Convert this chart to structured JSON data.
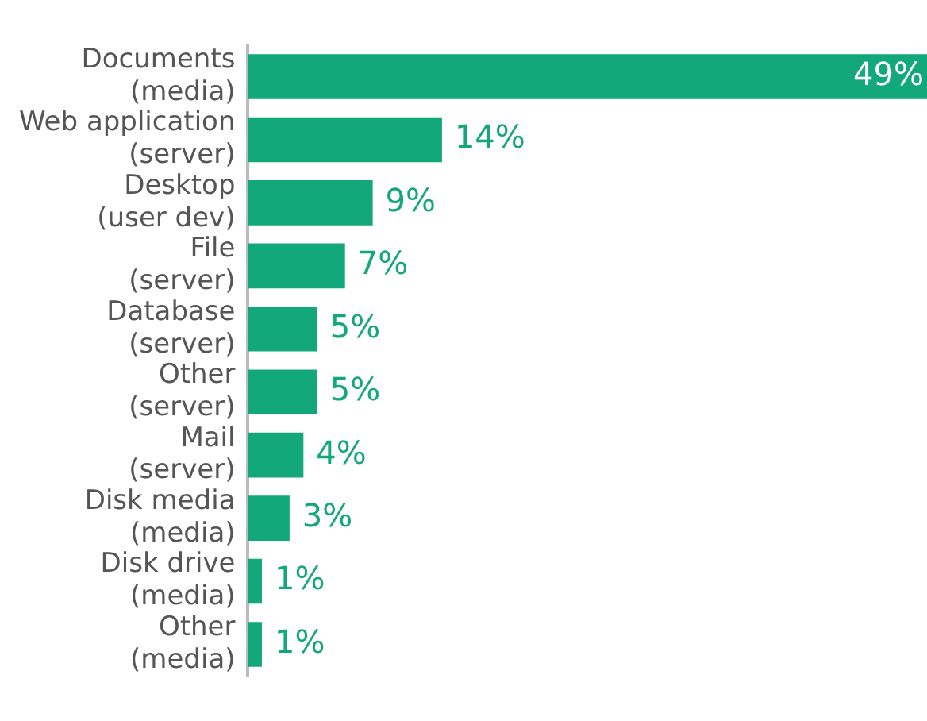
{
  "chart_data": {
    "type": "bar",
    "orientation": "horizontal",
    "categories": [
      "Documents\n(media)",
      "Web application\n(server)",
      "Desktop\n(user dev)",
      "File\n(server)",
      "Database\n(server)",
      "Other\n(server)",
      "Mail\n(server)",
      "Disk media\n(media)",
      "Disk drive\n(media)",
      "Other\n(media)"
    ],
    "values": [
      49,
      14,
      9,
      7,
      5,
      5,
      4,
      3,
      1,
      1
    ],
    "value_labels": [
      "49%",
      "14%",
      "9%",
      "7%",
      "5%",
      "5%",
      "4%",
      "3%",
      "1%",
      "1%"
    ],
    "color": "#12a87a",
    "xlim": [
      0,
      49
    ],
    "tick_labels": "y",
    "grid": false,
    "legend": false
  }
}
